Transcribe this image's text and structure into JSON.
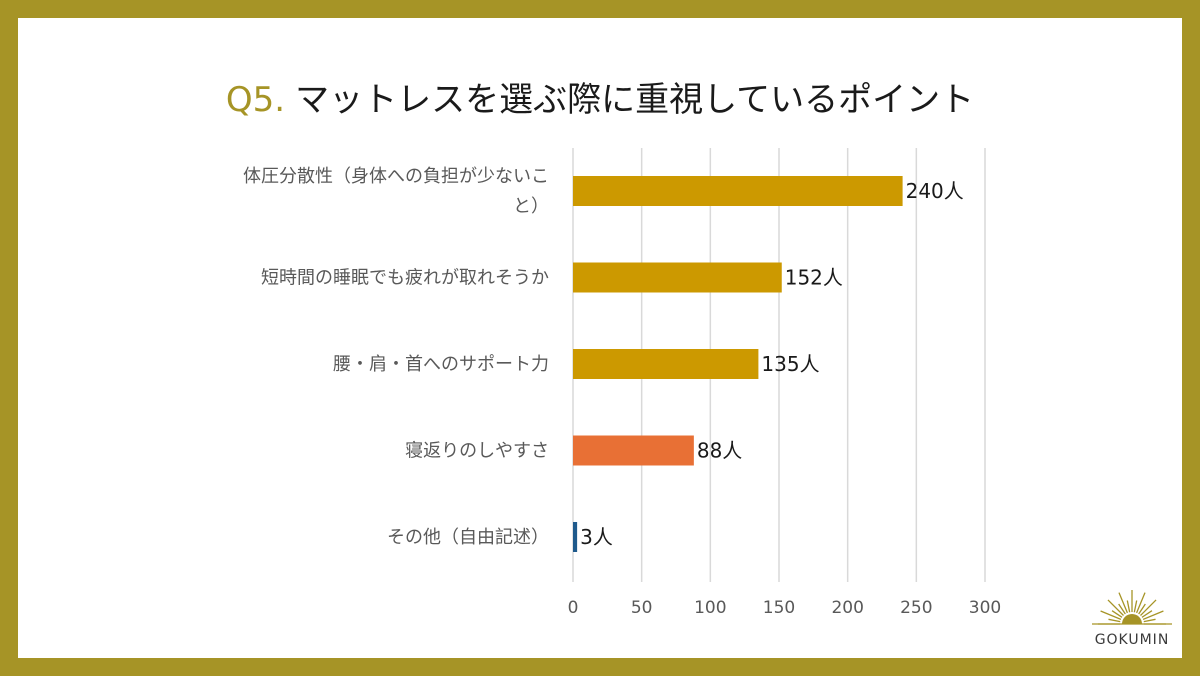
{
  "title": {
    "prefix": "Q5.",
    "text": "マットレスを選ぶ際に重視しているポイント"
  },
  "chart_data": {
    "type": "bar",
    "orientation": "horizontal",
    "categories": [
      [
        "体圧分散性（身体への負担が少ないこ",
        "と）"
      ],
      [
        "短時間の睡眠でも疲れが取れそうか"
      ],
      [
        "腰・肩・首へのサポート力"
      ],
      [
        "寝返りのしやすさ"
      ],
      [
        "その他（自由記述）"
      ]
    ],
    "values": [
      240,
      152,
      135,
      88,
      3
    ],
    "data_labels": [
      "240人",
      "152人",
      "135人",
      "88人",
      "3人"
    ],
    "bar_colors": [
      "#cc9900",
      "#cc9900",
      "#cc9900",
      "#e87035",
      "#1f5a8c"
    ],
    "xlim": [
      0,
      300
    ],
    "xticks": [
      0,
      50,
      100,
      150,
      200,
      250,
      300
    ],
    "grid": true,
    "xlabel": "",
    "ylabel": ""
  },
  "brand": {
    "name": "GOKUMIN",
    "color": "#a69426",
    "icon": "sunrise-icon"
  }
}
